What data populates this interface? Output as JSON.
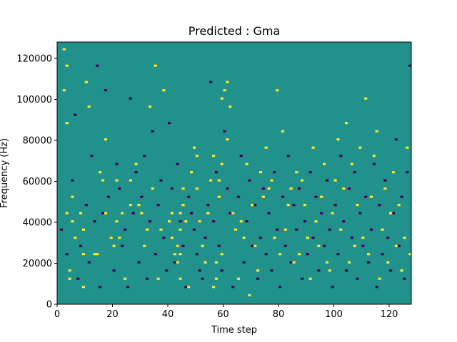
{
  "chart_data": {
    "type": "heatmap",
    "title": "Predicted : Gma",
    "xlabel": "Time step",
    "ylabel": "Frequency (Hz)",
    "xlim": [
      0,
      128
    ],
    "ylim": [
      0,
      128000
    ],
    "x_ticks": [
      0,
      20,
      40,
      60,
      80,
      100,
      120
    ],
    "x_tick_labels": [
      "0",
      "20",
      "40",
      "60",
      "80",
      "100",
      "120"
    ],
    "y_ticks": [
      0,
      20000,
      40000,
      60000,
      80000,
      100000,
      120000
    ],
    "y_tick_labels": [
      "0",
      "20000",
      "40000",
      "60000",
      "80000",
      "100000",
      "120000"
    ],
    "grid": false,
    "colormap": {
      "background_value": 0,
      "low_value": -1,
      "high_value": 1,
      "background_color": "#21918c",
      "low_color": "#440154",
      "high_color": "#fde725"
    },
    "n_time_steps": 128,
    "n_freq_bins": 128,
    "high_cells": [
      [
        2,
        104
      ],
      [
        2,
        124
      ],
      [
        3,
        44
      ],
      [
        3,
        88
      ],
      [
        3,
        116
      ],
      [
        4,
        12
      ],
      [
        4,
        16
      ],
      [
        5,
        40
      ],
      [
        5,
        52
      ],
      [
        6,
        32
      ],
      [
        8,
        44
      ],
      [
        9,
        8
      ],
      [
        9,
        24
      ],
      [
        9,
        36
      ],
      [
        10,
        108
      ],
      [
        11,
        96
      ],
      [
        13,
        24
      ],
      [
        14,
        24
      ],
      [
        15,
        64
      ],
      [
        16,
        60
      ],
      [
        17,
        44
      ],
      [
        17,
        80
      ],
      [
        19,
        32
      ],
      [
        20,
        28
      ],
      [
        21,
        40
      ],
      [
        21,
        60
      ],
      [
        22,
        32
      ],
      [
        23,
        44
      ],
      [
        24,
        12
      ],
      [
        26,
        48
      ],
      [
        26,
        60
      ],
      [
        28,
        68
      ],
      [
        29,
        48
      ],
      [
        30,
        44
      ],
      [
        31,
        28
      ],
      [
        32,
        36
      ],
      [
        33,
        96
      ],
      [
        34,
        56
      ],
      [
        35,
        116
      ],
      [
        36,
        12
      ],
      [
        37,
        36
      ],
      [
        38,
        104
      ],
      [
        40,
        40
      ],
      [
        41,
        32
      ],
      [
        41,
        44
      ],
      [
        42,
        24
      ],
      [
        43,
        20
      ],
      [
        43,
        28
      ],
      [
        44,
        12
      ],
      [
        44,
        24
      ],
      [
        44,
        36
      ],
      [
        44,
        44
      ],
      [
        45,
        48
      ],
      [
        45,
        56
      ],
      [
        46,
        40
      ],
      [
        47,
        8
      ],
      [
        48,
        64
      ],
      [
        49,
        76
      ],
      [
        50,
        56
      ],
      [
        50,
        72
      ],
      [
        51,
        40
      ],
      [
        52,
        28
      ],
      [
        53,
        20
      ],
      [
        54,
        44
      ],
      [
        55,
        60
      ],
      [
        56,
        72
      ],
      [
        56,
        8
      ],
      [
        57,
        12
      ],
      [
        57,
        20
      ],
      [
        58,
        52
      ],
      [
        58,
        60
      ],
      [
        59,
        24
      ],
      [
        59,
        68
      ],
      [
        59,
        100
      ],
      [
        60,
        104
      ],
      [
        61,
        80
      ],
      [
        61,
        108
      ],
      [
        62,
        96
      ],
      [
        63,
        44
      ],
      [
        64,
        36
      ],
      [
        65,
        12
      ],
      [
        66,
        40
      ],
      [
        67,
        32
      ],
      [
        68,
        68
      ],
      [
        69,
        4
      ],
      [
        70,
        48
      ],
      [
        71,
        28
      ],
      [
        72,
        16
      ],
      [
        73,
        64
      ],
      [
        74,
        52
      ],
      [
        75,
        76
      ],
      [
        76,
        56
      ],
      [
        77,
        60
      ],
      [
        78,
        32
      ],
      [
        79,
        104
      ],
      [
        80,
        24
      ],
      [
        81,
        84
      ],
      [
        82,
        36
      ],
      [
        83,
        48
      ],
      [
        84,
        56
      ],
      [
        85,
        20
      ],
      [
        86,
        64
      ],
      [
        87,
        24
      ],
      [
        88,
        60
      ],
      [
        89,
        48
      ],
      [
        90,
        32
      ],
      [
        91,
        12
      ],
      [
        92,
        76
      ],
      [
        93,
        40
      ],
      [
        94,
        28
      ],
      [
        95,
        52
      ],
      [
        96,
        68
      ],
      [
        97,
        20
      ],
      [
        98,
        16
      ],
      [
        99,
        44
      ],
      [
        100,
        60
      ],
      [
        101,
        80
      ],
      [
        102,
        36
      ],
      [
        103,
        56
      ],
      [
        104,
        88
      ],
      [
        105,
        20
      ],
      [
        106,
        68
      ],
      [
        107,
        28
      ],
      [
        108,
        48
      ],
      [
        109,
        76
      ],
      [
        110,
        32
      ],
      [
        111,
        100
      ],
      [
        112,
        24
      ],
      [
        113,
        52
      ],
      [
        114,
        72
      ],
      [
        115,
        84
      ],
      [
        116,
        12
      ],
      [
        117,
        36
      ],
      [
        118,
        56
      ],
      [
        119,
        20
      ],
      [
        120,
        44
      ],
      [
        121,
        64
      ],
      [
        122,
        28
      ],
      [
        123,
        48
      ],
      [
        124,
        16
      ],
      [
        125,
        32
      ],
      [
        126,
        76
      ],
      [
        127,
        24
      ]
    ],
    "low_cells": [
      [
        1,
        36
      ],
      [
        3,
        24
      ],
      [
        5,
        60
      ],
      [
        6,
        92
      ],
      [
        7,
        12
      ],
      [
        8,
        28
      ],
      [
        10,
        48
      ],
      [
        11,
        20
      ],
      [
        12,
        72
      ],
      [
        13,
        40
      ],
      [
        14,
        116
      ],
      [
        15,
        8
      ],
      [
        16,
        44
      ],
      [
        17,
        104
      ],
      [
        18,
        52
      ],
      [
        19,
        32
      ],
      [
        20,
        16
      ],
      [
        21,
        68
      ],
      [
        22,
        56
      ],
      [
        23,
        28
      ],
      [
        24,
        36
      ],
      [
        25,
        8
      ],
      [
        26,
        100
      ],
      [
        27,
        44
      ],
      [
        28,
        64
      ],
      [
        29,
        20
      ],
      [
        30,
        52
      ],
      [
        31,
        72
      ],
      [
        32,
        12
      ],
      [
        33,
        40
      ],
      [
        34,
        84
      ],
      [
        35,
        24
      ],
      [
        36,
        48
      ],
      [
        37,
        60
      ],
      [
        38,
        32
      ],
      [
        39,
        16
      ],
      [
        40,
        88
      ],
      [
        41,
        56
      ],
      [
        42,
        20
      ],
      [
        43,
        68
      ],
      [
        44,
        40
      ],
      [
        45,
        28
      ],
      [
        46,
        8
      ],
      [
        47,
        52
      ],
      [
        48,
        44
      ],
      [
        49,
        36
      ],
      [
        50,
        24
      ],
      [
        51,
        16
      ],
      [
        52,
        12
      ],
      [
        53,
        32
      ],
      [
        54,
        48
      ],
      [
        55,
        108
      ],
      [
        56,
        40
      ],
      [
        57,
        64
      ],
      [
        58,
        28
      ],
      [
        59,
        16
      ],
      [
        60,
        84
      ],
      [
        61,
        56
      ],
      [
        62,
        44
      ],
      [
        63,
        8
      ],
      [
        64,
        36
      ],
      [
        65,
        52
      ],
      [
        66,
        72
      ],
      [
        67,
        20
      ],
      [
        68,
        40
      ],
      [
        69,
        60
      ],
      [
        70,
        28
      ],
      [
        71,
        48
      ],
      [
        72,
        12
      ],
      [
        73,
        32
      ],
      [
        74,
        56
      ],
      [
        75,
        24
      ],
      [
        76,
        44
      ],
      [
        77,
        16
      ],
      [
        78,
        64
      ],
      [
        79,
        36
      ],
      [
        80,
        8
      ],
      [
        81,
        52
      ],
      [
        82,
        28
      ],
      [
        83,
        72
      ],
      [
        84,
        20
      ],
      [
        85,
        48
      ],
      [
        86,
        36
      ],
      [
        87,
        56
      ],
      [
        88,
        12
      ],
      [
        89,
        40
      ],
      [
        90,
        24
      ],
      [
        91,
        64
      ],
      [
        92,
        32
      ],
      [
        93,
        52
      ],
      [
        94,
        16
      ],
      [
        95,
        44
      ],
      [
        96,
        28
      ],
      [
        97,
        60
      ],
      [
        98,
        36
      ],
      [
        99,
        8
      ],
      [
        100,
        48
      ],
      [
        101,
        24
      ],
      [
        102,
        72
      ],
      [
        103,
        40
      ],
      [
        104,
        16
      ],
      [
        105,
        56
      ],
      [
        106,
        32
      ],
      [
        107,
        64
      ],
      [
        108,
        12
      ],
      [
        109,
        44
      ],
      [
        110,
        28
      ],
      [
        111,
        52
      ],
      [
        112,
        20
      ],
      [
        113,
        36
      ],
      [
        114,
        68
      ],
      [
        115,
        8
      ],
      [
        116,
        48
      ],
      [
        117,
        24
      ],
      [
        118,
        60
      ],
      [
        119,
        32
      ],
      [
        120,
        16
      ],
      [
        121,
        44
      ],
      [
        122,
        80
      ],
      [
        123,
        28
      ],
      [
        124,
        52
      ],
      [
        125,
        12
      ],
      [
        126,
        64
      ],
      [
        127,
        116
      ]
    ]
  }
}
